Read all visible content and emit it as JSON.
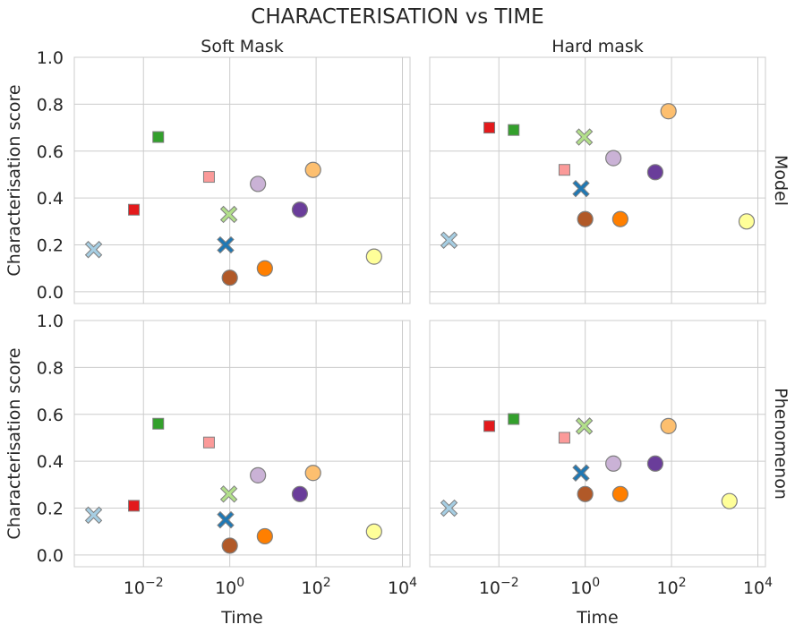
{
  "chart_data": {
    "type": "scatter",
    "title": "CHARACTERISATION vs TIME",
    "xlabel": "Time",
    "ylabel": "Characterisation score",
    "xscale": "log",
    "xlim": [
      0.00025,
      15000
    ],
    "ylim": [
      -0.05,
      1.0
    ],
    "yticks": [
      "0.0",
      "0.2",
      "0.4",
      "0.6",
      "0.8",
      "1.0"
    ],
    "xticks": [
      {
        "base": "10",
        "exp": "−2",
        "value": 0.01
      },
      {
        "base": "10",
        "exp": "0",
        "value": 1
      },
      {
        "base": "10",
        "exp": "2",
        "value": 100
      },
      {
        "base": "10",
        "exp": "4",
        "value": 10000
      }
    ],
    "col_titles": [
      "Soft Mask",
      "Hard mask"
    ],
    "row_titles": [
      "Model",
      "Phenomenon"
    ],
    "grid": true,
    "legend": "none",
    "colors": [
      "#a6cee3",
      "#1f78b4",
      "#b2df8a",
      "#33a02c",
      "#fb9a99",
      "#e31a1c",
      "#fdbf6f",
      "#ff7f00",
      "#cab2d6",
      "#6a3d9a",
      "#ffff99",
      "#b15928"
    ],
    "series": [
      {
        "color": "#a6cee3",
        "marker": "x",
        "x": [
          0.0007,
          0.0007
        ],
        "y": [
          [
            0.18,
            0.17
          ],
          [
            0.22,
            0.2
          ]
        ]
      },
      {
        "color": "#1f78b4",
        "marker": "x",
        "x": [
          0.8,
          0.8
        ],
        "y": [
          [
            0.2,
            0.15
          ],
          [
            0.44,
            0.35
          ]
        ]
      },
      {
        "color": "#b2df8a",
        "marker": "x",
        "x": [
          0.95,
          0.95
        ],
        "y": [
          [
            0.33,
            0.26
          ],
          [
            0.66,
            0.55
          ]
        ]
      },
      {
        "color": "#33a02c",
        "marker": "square",
        "x": [
          0.022,
          0.022
        ],
        "y": [
          [
            0.66,
            0.56
          ],
          [
            0.69,
            0.58
          ]
        ]
      },
      {
        "color": "#fb9a99",
        "marker": "square",
        "x": [
          0.33,
          0.33
        ],
        "y": [
          [
            0.49,
            0.48
          ],
          [
            0.52,
            0.5
          ]
        ]
      },
      {
        "color": "#e31a1c",
        "marker": "square",
        "x": [
          0.006,
          0.006
        ],
        "y": [
          [
            0.35,
            0.21
          ],
          [
            0.7,
            0.55
          ]
        ]
      },
      {
        "color": "#fdbf6f",
        "marker": "circle",
        "x": [
          85,
          85
        ],
        "y": [
          [
            0.52,
            0.35
          ],
          [
            0.77,
            0.55
          ]
        ]
      },
      {
        "color": "#ff7f00",
        "marker": "circle",
        "x": [
          6.5,
          6.5
        ],
        "y": [
          [
            0.1,
            0.08
          ],
          [
            0.31,
            0.26
          ]
        ]
      },
      {
        "color": "#cab2d6",
        "marker": "circle",
        "x": [
          4.5,
          4.5
        ],
        "y": [
          [
            0.46,
            0.34
          ],
          [
            0.57,
            0.39
          ]
        ]
      },
      {
        "color": "#6a3d9a",
        "marker": "circle",
        "x": [
          42,
          42
        ],
        "y": [
          [
            0.35,
            0.26
          ],
          [
            0.51,
            0.39
          ]
        ]
      },
      {
        "color": "#ffff99",
        "marker": "circle",
        "x": [
          2200,
          2200
        ],
        "y": [
          [
            0.15,
            0.1
          ],
          [
            0.3,
            0.23
          ]
        ],
        "x_override": [
          [
            2200,
            2200
          ],
          [
            5500,
            2200
          ]
        ]
      },
      {
        "color": "#b15928",
        "marker": "circle",
        "x": [
          1.0,
          1.0
        ],
        "y": [
          [
            0.06,
            0.04
          ],
          [
            0.31,
            0.26
          ]
        ]
      }
    ]
  }
}
